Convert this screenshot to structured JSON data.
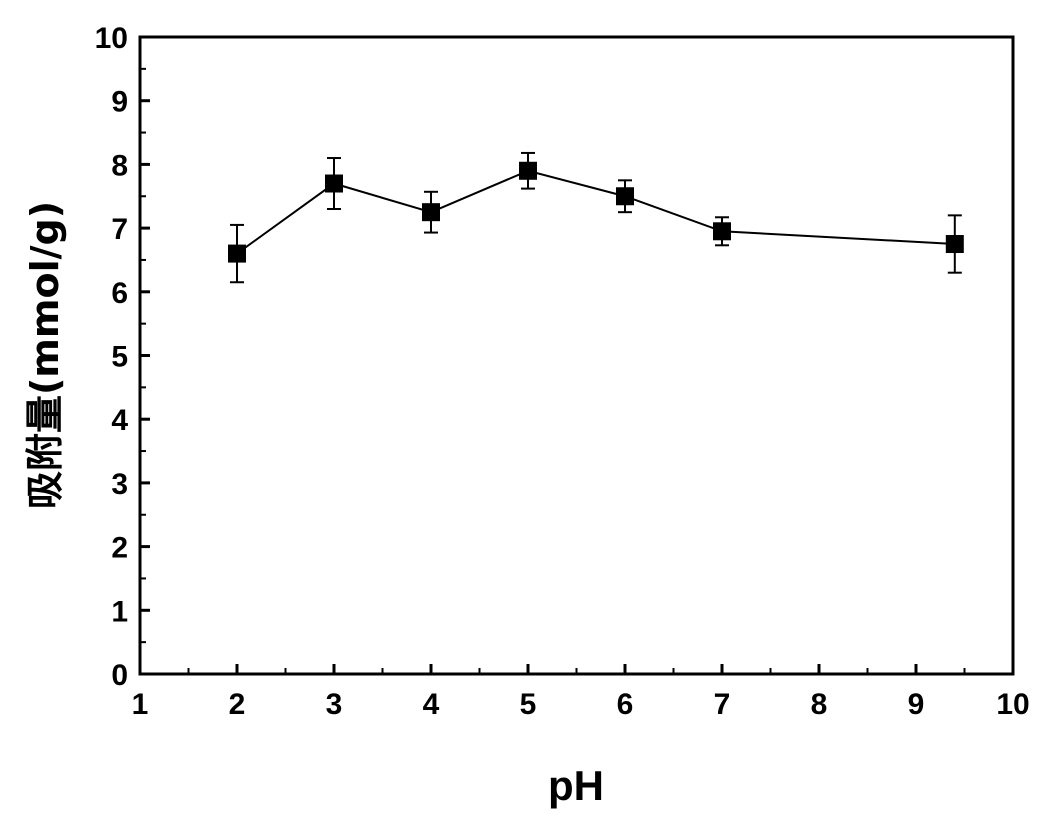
{
  "chart_data": {
    "type": "line",
    "xlabel": "pH",
    "ylabel": "吸附量(mmol/g)",
    "xlim": [
      1,
      10
    ],
    "ylim": [
      0,
      10
    ],
    "xticks": [
      "1",
      "2",
      "3",
      "4",
      "5",
      "6",
      "7",
      "8",
      "9",
      "10"
    ],
    "yticks": [
      "0",
      "1",
      "2",
      "3",
      "4",
      "5",
      "6",
      "7",
      "8",
      "9",
      "10"
    ],
    "grid": false,
    "legend": "none",
    "series": [
      {
        "x": [
          2,
          3,
          4,
          5,
          6,
          7,
          9.4
        ],
        "y": [
          6.6,
          7.7,
          7.25,
          7.9,
          7.5,
          6.95,
          6.75
        ],
        "error": [
          0.45,
          0.4,
          0.32,
          0.28,
          0.25,
          0.22,
          0.45
        ],
        "color": "#000000",
        "marker": "square"
      }
    ]
  }
}
